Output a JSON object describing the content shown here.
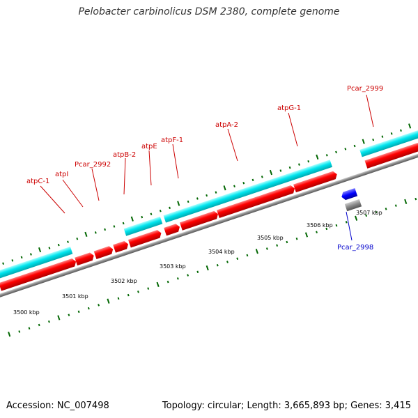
{
  "header": {
    "title": "Pelobacter carbinolicus DSM 2380, complete genome"
  },
  "footer": {
    "accession": "Accession: NC_007498",
    "summary": "Topology: circular; Length: 3,665,893 bp; Genes: 3,415"
  },
  "genes_top": [
    {
      "label": "atpC-1"
    },
    {
      "label": "atpI"
    },
    {
      "label": "Pcar_2992"
    },
    {
      "label": "atpB-2"
    },
    {
      "label": "atpE"
    },
    {
      "label": "atpF-1"
    },
    {
      "label": "atpA-2"
    },
    {
      "label": "atpG-1"
    },
    {
      "label": "Pcar_2999"
    }
  ],
  "genes_bottom": [
    {
      "label": "Pcar_2998"
    }
  ],
  "scale_ticks": [
    "3500 kbp",
    "3501 kbp",
    "3502 kbp",
    "3503 kbp",
    "3504 kbp",
    "3505 kbp",
    "3506 kbp",
    "3507 kbp"
  ],
  "colors": {
    "forward_gene": "#ff0000",
    "cds_cyan": "#00e5ee",
    "reverse_gene": "#0000ff",
    "reverse_cds": "#666666",
    "backbone": "#888888",
    "tick_green": "#006600",
    "label_red": "#cc0000",
    "label_blue": "#0000cc",
    "magenta": "#ff00aa"
  }
}
